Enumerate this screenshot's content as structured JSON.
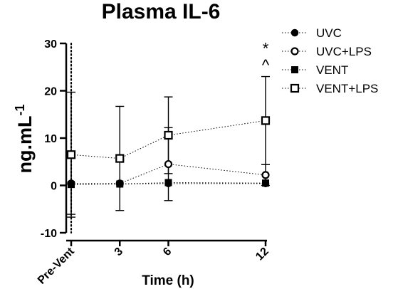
{
  "chart_data": {
    "type": "line",
    "title": "Plasma IL-6",
    "xlabel": "Time (h)",
    "ylabel_main": "ng.mL",
    "ylabel_sup": "-1",
    "x_ticks": [
      {
        "label": "Pre-Vent",
        "value": 0
      },
      {
        "label": "3",
        "value": 3
      },
      {
        "label": "6",
        "value": 6
      },
      {
        "label": "12",
        "value": 12
      }
    ],
    "xlim": [
      0,
      12
    ],
    "y_ticks": [
      "30",
      "20",
      "10",
      "0",
      "-10"
    ],
    "ylim": [
      -10,
      30
    ],
    "reference_line_x": 0,
    "legend_position": "top-right",
    "series": [
      {
        "name": "UVC",
        "marker": "circle-filled",
        "x": [
          0,
          3,
          6,
          12
        ],
        "y": [
          0.3,
          0.3,
          0.4,
          0.4
        ],
        "err": [
          0,
          0,
          0,
          0
        ]
      },
      {
        "name": "UVC+LPS",
        "marker": "circle-open",
        "x": [
          0,
          3,
          6,
          12
        ],
        "y": [
          0.4,
          0.4,
          4.5,
          2.2
        ],
        "err": [
          6.5,
          0,
          7.7,
          2.2
        ]
      },
      {
        "name": "VENT",
        "marker": "square-filled",
        "x": [
          0,
          3,
          6,
          12
        ],
        "y": [
          0.2,
          0.3,
          0.6,
          0.5
        ],
        "err": [
          0,
          0,
          0,
          0
        ]
      },
      {
        "name": "VENT+LPS",
        "marker": "square-open",
        "x": [
          0,
          3,
          6,
          12
        ],
        "y": [
          6.5,
          5.7,
          10.6,
          13.7
        ],
        "err": [
          13.2,
          11.0,
          8.1,
          9.3
        ]
      }
    ],
    "annotations": [
      {
        "text": "*",
        "x": 12,
        "y": 29
      },
      {
        "text": "^",
        "x": 12,
        "y": 25.5
      }
    ]
  }
}
